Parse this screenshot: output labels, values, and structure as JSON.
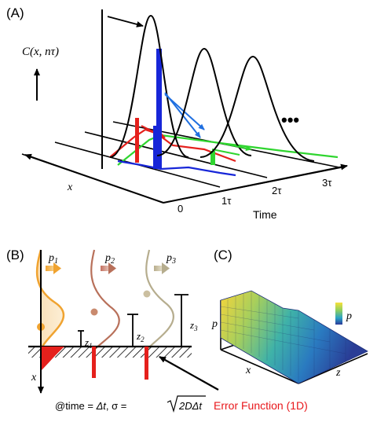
{
  "panel_a": {
    "label": "(A)",
    "y_label": "C(x, nτ)",
    "x_label": "x",
    "time_label": "Time",
    "ticks": [
      "0",
      "1τ",
      "2τ",
      "3τ"
    ],
    "ellipsis": "•••"
  },
  "panel_b": {
    "label": "(B)",
    "probs": [
      "p",
      "p",
      "p"
    ],
    "prob_subs": [
      "1",
      "2",
      "3"
    ],
    "z_labels": [
      "z",
      "z",
      "z"
    ],
    "z_subs": [
      "1",
      "2",
      "3"
    ],
    "x_label": "x",
    "formula": "@time = Δt, σ = √(2DΔt)",
    "formula_parts": {
      "at": "@time = ",
      "dt": "Δt",
      "sigma": ", σ = ",
      "root": "2DΔt"
    },
    "annotation": "Error Function (1D)",
    "annotation_color": "#e8171b"
  },
  "panel_c": {
    "label": "(C)",
    "p_axis": "p",
    "x_axis": "x",
    "z_axis": "z",
    "colorbar_label": "p"
  },
  "colors": {
    "red": "#e5201c",
    "blue": "#1726d8",
    "green": "#2fd52f",
    "orange": "#f0a330",
    "brown": "#b8705a",
    "tan": "#b6ad8e"
  }
}
